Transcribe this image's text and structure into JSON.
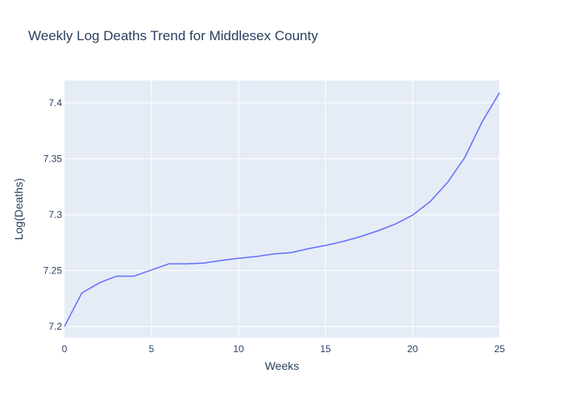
{
  "chart_data": {
    "type": "line",
    "title": "Weekly Log Deaths Trend for Middlesex County",
    "xlabel": "Weeks",
    "ylabel": "Log(Deaths)",
    "xlim": [
      0,
      25
    ],
    "ylim": [
      7.19,
      7.42
    ],
    "x_ticks": [
      0,
      5,
      10,
      15,
      20,
      25
    ],
    "x_tick_labels": [
      "0",
      "5",
      "10",
      "15",
      "20",
      "25"
    ],
    "y_ticks": [
      7.2,
      7.25,
      7.3,
      7.35,
      7.4
    ],
    "y_tick_labels": [
      "7.2",
      "7.25",
      "7.3",
      "7.35",
      "7.4"
    ],
    "grid": true,
    "legend": "none",
    "series": [
      {
        "color": "#636efa",
        "x": [
          0,
          1,
          2,
          3,
          4,
          5,
          6,
          7,
          8,
          9,
          10,
          11,
          12,
          13,
          14,
          15,
          16,
          17,
          18,
          19,
          20,
          21,
          22,
          23,
          24,
          25
        ],
        "values": [
          7.2,
          7.23,
          7.239,
          7.245,
          7.245,
          7.2505,
          7.256,
          7.256,
          7.2567,
          7.259,
          7.261,
          7.2625,
          7.2648,
          7.266,
          7.2695,
          7.2725,
          7.276,
          7.2803,
          7.2855,
          7.2915,
          7.2995,
          7.3115,
          7.3285,
          7.351,
          7.383,
          7.409
        ]
      }
    ]
  }
}
